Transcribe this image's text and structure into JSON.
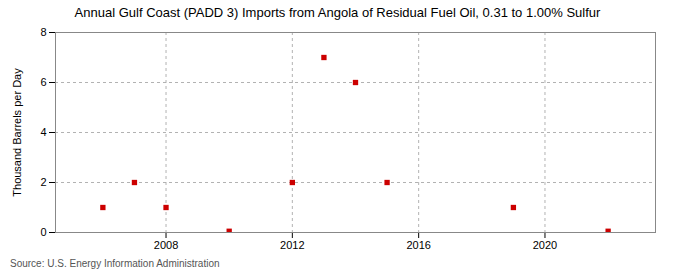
{
  "chart_data": {
    "type": "scatter",
    "title": "Annual Gulf Coast (PADD 3) Imports from Angola of Residual Fuel Oil, 0.31 to 1.00% Sulfur",
    "ylabel": "Thousand Barrels per Day",
    "source": "Source: U.S. Energy Information Administration",
    "x": [
      2006,
      2007,
      2008,
      2010,
      2012,
      2013,
      2014,
      2015,
      2019,
      2022
    ],
    "values": [
      1,
      2,
      1,
      0.05,
      2,
      7,
      6,
      2,
      1,
      0.05
    ],
    "color": "#cc0000",
    "marker": "square",
    "xlim": [
      2004.5,
      2023.5
    ],
    "xticks": [
      2008,
      2012,
      2016,
      2020
    ],
    "ylim": [
      0,
      8
    ],
    "yticks": [
      0,
      2,
      4,
      6,
      8
    ],
    "grid": true
  }
}
